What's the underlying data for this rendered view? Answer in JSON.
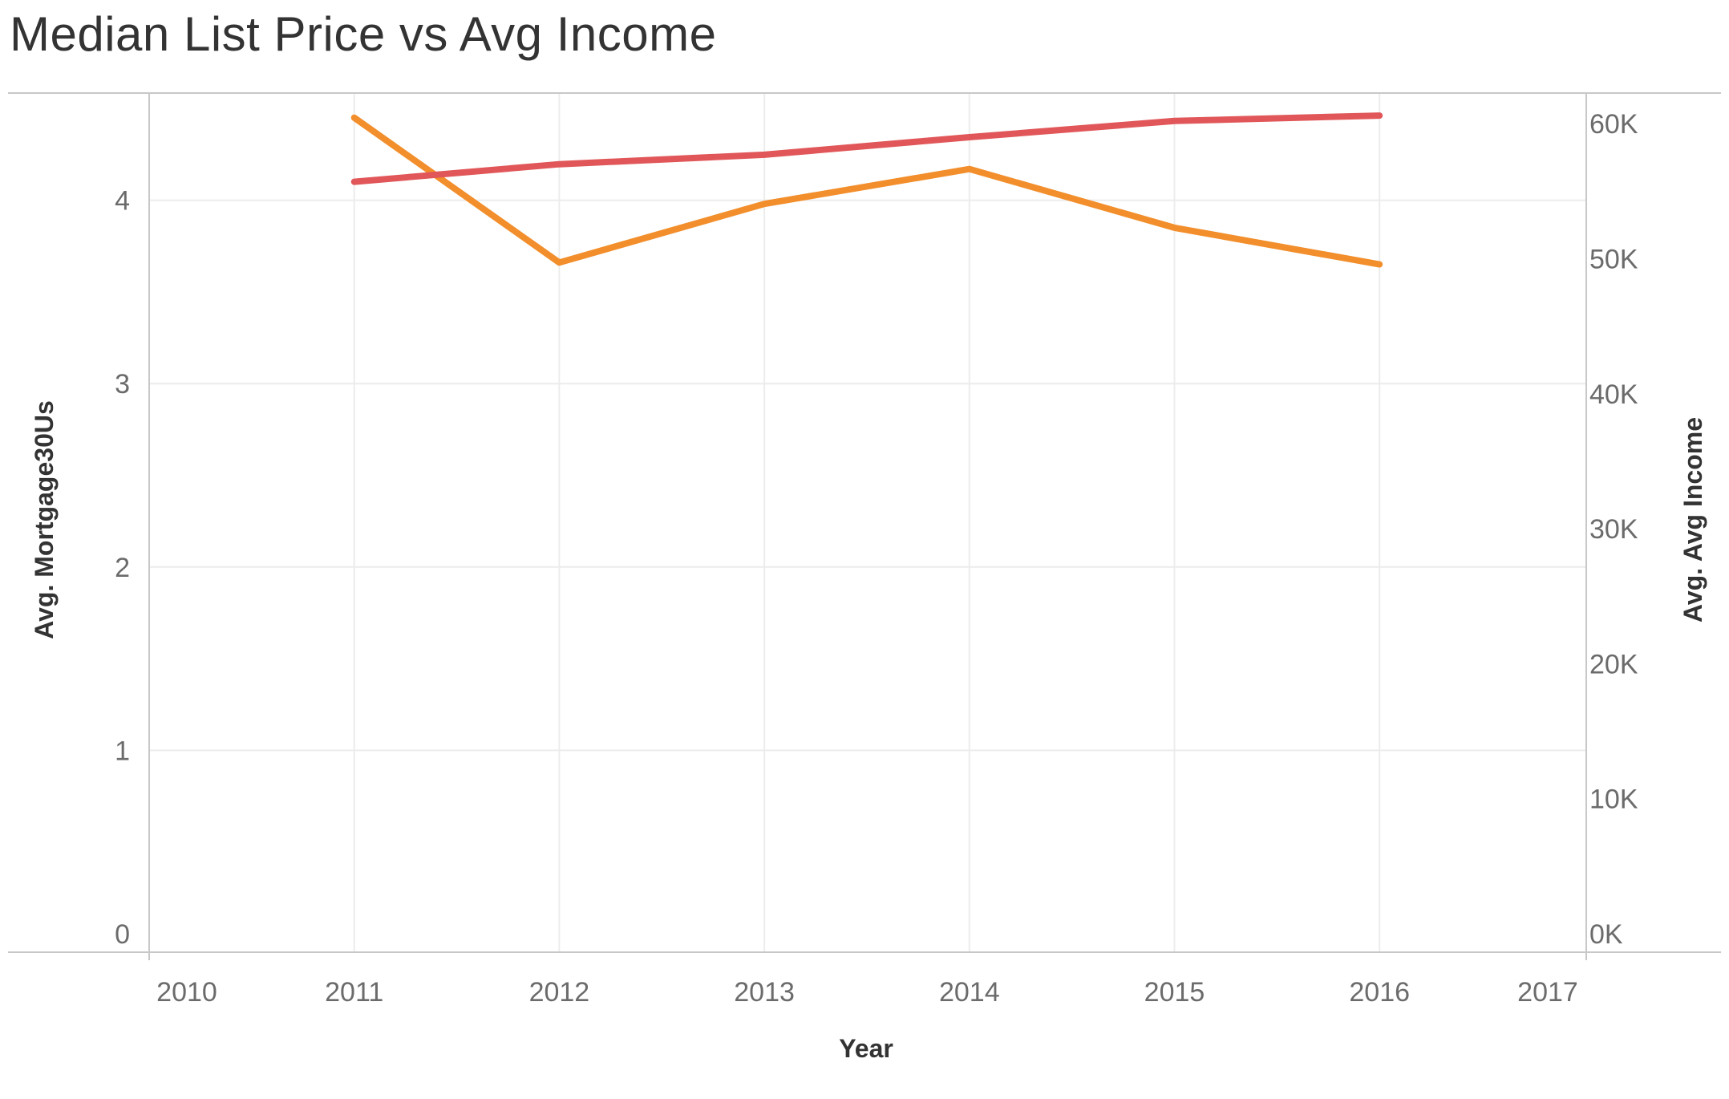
{
  "chart_data": {
    "type": "line",
    "title": "Median List Price vs Avg Income",
    "xlabel": "Year",
    "ylabel_left": "Avg. Mortgage30Us",
    "ylabel_right": "Avg. Avg Income",
    "x": [
      2011,
      2012,
      2013,
      2014,
      2015,
      2016
    ],
    "x_ticks": [
      "2010",
      "2011",
      "2012",
      "2013",
      "2014",
      "2015",
      "2016",
      "2017"
    ],
    "xlim": [
      2010,
      2017
    ],
    "ylim_left": [
      0,
      4.6
    ],
    "ylim_right": [
      0,
      62700
    ],
    "y_ticks_left": [
      "0",
      "1",
      "2",
      "3",
      "4"
    ],
    "y_ticks_right": [
      "0K",
      "10K",
      "20K",
      "30K",
      "40K",
      "50K",
      "60K"
    ],
    "grid": true,
    "series": [
      {
        "axis": "left",
        "color": "#f28e2b",
        "values": [
          4.45,
          3.66,
          3.98,
          4.17,
          3.85,
          3.65
        ]
      },
      {
        "axis": "right",
        "color": "#e15759",
        "values": [
          55700,
          57000,
          57700,
          59000,
          60200,
          60600
        ]
      }
    ]
  }
}
